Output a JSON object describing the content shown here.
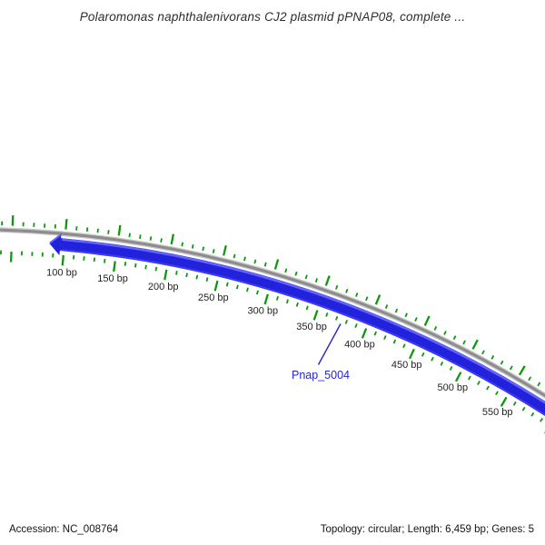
{
  "title": "Polaromonas naphthalenivorans CJ2 plasmid pPNAP08, complete ...",
  "status_bar": {
    "accession": "Accession: NC_008764",
    "summary": "Topology: circular; Length: 6,459 bp; Genes: 5"
  },
  "map": {
    "length_bp": 6459,
    "ruler": {
      "minor_tick_bp": 10,
      "major_tick_bp": 50,
      "labels": [
        {
          "bp": 100,
          "text": "100 bp"
        },
        {
          "bp": 150,
          "text": "150 bp"
        },
        {
          "bp": 200,
          "text": "200 bp"
        },
        {
          "bp": 250,
          "text": "250 bp"
        },
        {
          "bp": 300,
          "text": "300 bp"
        },
        {
          "bp": 350,
          "text": "350 bp"
        },
        {
          "bp": 400,
          "text": "400 bp"
        },
        {
          "bp": 450,
          "text": "450 bp"
        },
        {
          "bp": 500,
          "text": "500 bp"
        }
      ],
      "last_label": {
        "bp": 550,
        "text": "550 bp"
      }
    },
    "gene": {
      "name": "Pnap_5004",
      "arrow_tip_bp": 86,
      "arrow_direction": "counterclockwise"
    },
    "colors": {
      "tick": "#0D980D",
      "backbone": "#8C8C8C",
      "backbone_light": "#C7C7C7",
      "gene": "#2222DC",
      "gene_highlight": "#6363FF",
      "gene_edge": "#3C3CF0",
      "ruler_label": "#1F1F1F",
      "gene_label": "#2424CC"
    }
  }
}
